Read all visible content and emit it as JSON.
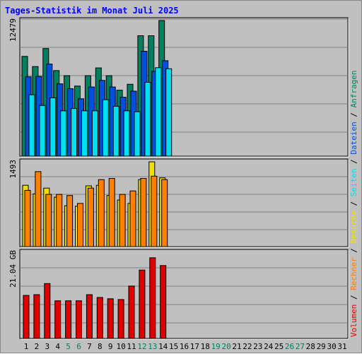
{
  "title": "Tages-Statistik im Monat Juli 2025",
  "legend": [
    {
      "label": "Volumen",
      "color": "#e00000"
    },
    {
      "label": "Rechner",
      "color": "#ff7f00"
    },
    {
      "label": "Besuche",
      "color": "#f0e000"
    },
    {
      "label": "Seiten",
      "color": "#00e0f0"
    },
    {
      "label": "Dateien",
      "color": "#0050e0"
    },
    {
      "label": "Anfragen",
      "color": "#008060"
    }
  ],
  "legend_separator": "/",
  "days": [
    "1",
    "2",
    "3",
    "4",
    "5",
    "6",
    "7",
    "8",
    "9",
    "10",
    "11",
    "12",
    "13",
    "14",
    "15",
    "16",
    "17",
    "18",
    "19",
    "20",
    "21",
    "22",
    "23",
    "24",
    "25",
    "26",
    "27",
    "28",
    "29",
    "30",
    "31"
  ],
  "weekend_days": [
    "5",
    "6",
    "12",
    "13",
    "19",
    "20",
    "26",
    "27"
  ],
  "colors": {
    "weekday": "#000000",
    "weekend": "#008060"
  },
  "chart_data": [
    {
      "type": "bar",
      "name": "top",
      "ymax_label": "12479",
      "ylim": [
        0,
        12479
      ],
      "series": [
        {
          "name": "Anfragen",
          "color": "#008060",
          "values": [
            9180,
            8240,
            9900,
            7870,
            7400,
            6450,
            7400,
            8120,
            7400,
            6070,
            6610,
            11080,
            11080,
            12479
          ]
        },
        {
          "name": "Dateien",
          "color": "#0050e0",
          "values": [
            7300,
            7330,
            8470,
            6650,
            6210,
            5280,
            6360,
            6970,
            6360,
            5420,
            5980,
            9650,
            7800,
            8780
          ]
        },
        {
          "name": "Seiten",
          "color": "#00e0f0",
          "values": [
            5650,
            4660,
            5370,
            4170,
            4380,
            4170,
            4170,
            5190,
            4590,
            4170,
            4090,
            6790,
            8140,
            8040
          ]
        }
      ]
    },
    {
      "type": "bar",
      "name": "middle",
      "ymax_label": "1493",
      "ylim": [
        0,
        1493
      ],
      "series": [
        {
          "name": "Besuche",
          "color": "#f0e000",
          "values": [
            1080,
            930,
            1030,
            870,
            720,
            710,
            1070,
            1080,
            900,
            820,
            760,
            1180,
            1493,
            1210
          ]
        },
        {
          "name": "Rechner",
          "color": "#ff7f00",
          "values": [
            990,
            1320,
            920,
            920,
            900,
            760,
            1030,
            1180,
            1200,
            920,
            980,
            1200,
            1240,
            1180
          ]
        }
      ]
    },
    {
      "type": "bar",
      "name": "bottom",
      "ymax_label": "21.04 GB",
      "ylim": [
        0,
        21.04
      ],
      "series": [
        {
          "name": "Volumen",
          "color": "#e00000",
          "values": [
            10.5,
            10.7,
            13.4,
            9.2,
            9.2,
            9.2,
            10.7,
            10.0,
            9.7,
            9.5,
            12.8,
            16.7,
            19.7,
            17.8
          ]
        }
      ]
    }
  ]
}
